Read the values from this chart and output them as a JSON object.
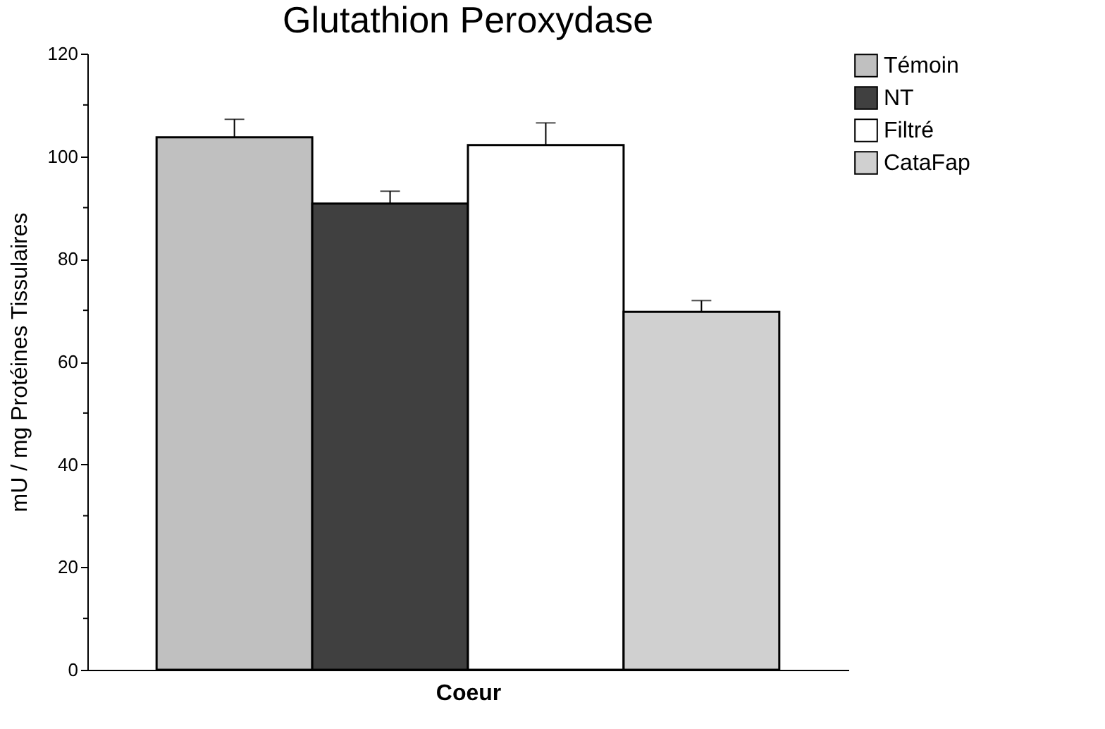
{
  "chart_data": {
    "type": "bar",
    "title": "Glutathion Peroxydase",
    "xlabel": "Coeur",
    "ylabel": "mU / mg Protéines Tissulaires",
    "categories": [
      null
    ],
    "series": [
      {
        "name": "Témoin",
        "color": "#c0c0c0",
        "values": [
          103.7
        ],
        "errors": [
          3.5
        ]
      },
      {
        "name": "NT",
        "color": "#404040",
        "values": [
          90.8
        ],
        "errors": [
          2.4
        ]
      },
      {
        "name": "Filtré",
        "color": "#ffffff",
        "values": [
          102.2
        ],
        "errors": [
          4.3
        ]
      },
      {
        "name": "CataFap",
        "color": "#d0d0d0",
        "values": [
          69.7
        ],
        "errors": [
          2.2
        ]
      }
    ],
    "ylim": [
      0,
      120
    ],
    "yticks": [
      0,
      {
        "value": 10,
        "label": null
      },
      20,
      {
        "value": 30,
        "label": null
      },
      40,
      {
        "value": 50,
        "label": null
      },
      60,
      {
        "value": 70,
        "label": null
      },
      80,
      {
        "value": 90,
        "label": null
      },
      100,
      {
        "value": 110,
        "label": null
      },
      120
    ],
    "legend": "top right",
    "grid": false
  }
}
